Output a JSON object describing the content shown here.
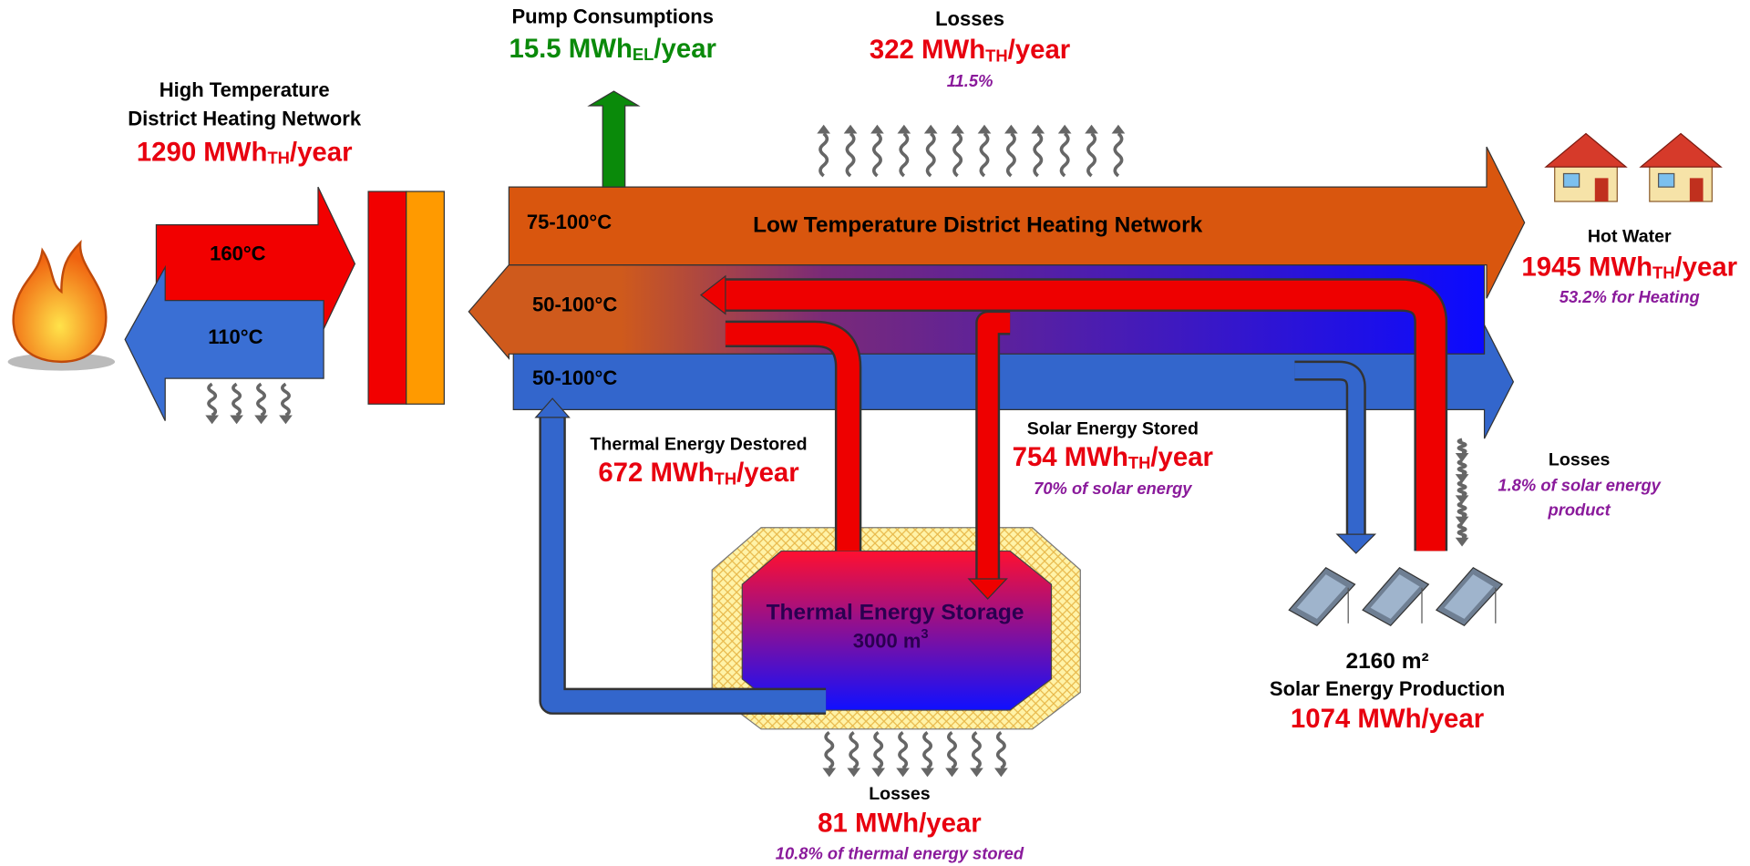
{
  "high_temp_network": {
    "title_line1": "High Temperature",
    "title_line2": "District Heating Network",
    "value": "1290 MWh",
    "unit_sub": "TH",
    "unit_suffix": "/year",
    "supply_temp": "160°C",
    "return_temp": "110°C"
  },
  "pump": {
    "title": "Pump Consumptions",
    "value": "15.5 MWh",
    "unit_sub": "EL",
    "unit_suffix": "/year"
  },
  "network_losses": {
    "title": "Losses",
    "value": "322 MWh",
    "unit_sub": "TH",
    "unit_suffix": "/year",
    "share": "11.5%"
  },
  "low_temp_network": {
    "title": "Low Temperature District Heating Network",
    "supply_temp": "75-100°C",
    "middle_temp": "50-100°C",
    "return_temp": "50-100°C"
  },
  "hot_water": {
    "title": "Hot Water",
    "value": "1945 MWh",
    "unit_sub": "TH",
    "unit_suffix": "/year",
    "share": "53.2% for Heating"
  },
  "destored": {
    "title": "Thermal Energy Destored",
    "value": "672 MWh",
    "unit_sub": "TH",
    "unit_suffix": "/year"
  },
  "solar_stored": {
    "title": "Solar Energy Stored",
    "value": "754 MWh",
    "unit_sub": "TH",
    "unit_suffix": "/year",
    "share": "70% of solar energy"
  },
  "solar_losses": {
    "title": "Losses",
    "share_line1": "1.8% of solar energy",
    "share_line2": "product"
  },
  "storage": {
    "title": "Thermal Energy Storage",
    "volume": "3000 m",
    "volume_sup": "3"
  },
  "solar_field": {
    "area": "2160 m²",
    "title": "Solar Energy Production",
    "value": "1074 MWh/year"
  },
  "storage_losses": {
    "title": "Losses",
    "value": "81 MWh/year",
    "share": "10.8% of thermal energy stored"
  }
}
